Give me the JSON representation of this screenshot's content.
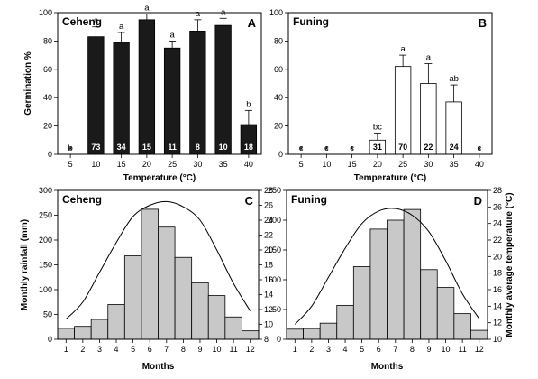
{
  "chart_data": [
    {
      "panel": "A",
      "type": "bar",
      "title": "Ceheng",
      "xlabel": "Temperature (°C)",
      "ylabel": "Germination %",
      "categories": [
        "5",
        "10",
        "15",
        "20",
        "25",
        "30",
        "35",
        "40"
      ],
      "values": [
        0,
        83,
        79,
        95,
        75,
        87,
        91,
        21
      ],
      "errors": [
        0,
        7,
        7,
        4,
        5,
        8,
        5,
        10
      ],
      "significance": [
        "b",
        "a",
        "a",
        "a",
        "a",
        "a",
        "a",
        "b"
      ],
      "counts": [
        "*",
        "73",
        "34",
        "15",
        "11",
        "8",
        "10",
        "18"
      ],
      "ylim": [
        0,
        100
      ],
      "yticks": [
        0,
        20,
        40,
        60,
        80,
        100
      ],
      "bar_color": "#1a1a1a"
    },
    {
      "panel": "B",
      "type": "bar",
      "title": "Funing",
      "xlabel": "Temperature (°C)",
      "ylabel": "",
      "categories": [
        "5",
        "10",
        "15",
        "20",
        "25",
        "30",
        "35",
        "40"
      ],
      "values": [
        0,
        0,
        0,
        10,
        62,
        50,
        37,
        0
      ],
      "errors": [
        0,
        0,
        0,
        5,
        8,
        14,
        12,
        0
      ],
      "significance": [
        "c",
        "c",
        "c",
        "bc",
        "a",
        "a",
        "ab",
        "c"
      ],
      "counts": [
        "*",
        "*",
        "*",
        "31",
        "70",
        "22",
        "24",
        "*"
      ],
      "ylim": [
        0,
        100
      ],
      "yticks": [
        0,
        20,
        40,
        60,
        80,
        100
      ],
      "bar_color": "#ffffff"
    },
    {
      "panel": "C",
      "type": "bar",
      "title": "Ceheng",
      "xlabel": "Months",
      "ylabel": "Monthly rainfall (mm)",
      "categories": [
        "1",
        "2",
        "3",
        "4",
        "5",
        "6",
        "7",
        "8",
        "9",
        "10",
        "11",
        "12"
      ],
      "values": [
        22,
        26,
        40,
        70,
        168,
        262,
        226,
        165,
        114,
        88,
        45,
        17
      ],
      "ylim": [
        0,
        300
      ],
      "yticks": [
        0,
        50,
        100,
        150,
        200,
        250,
        300
      ],
      "secondary": {
        "ylabel": "",
        "ylim": [
          8,
          28
        ],
        "yticks": [
          8,
          10,
          12,
          14,
          16,
          18,
          20,
          22,
          24,
          26,
          28
        ],
        "type": "line",
        "values": [
          10.7,
          13.0,
          17.0,
          21.0,
          24.5,
          26.0,
          26.5,
          25.8,
          24.0,
          20.0,
          15.5,
          11.8
        ]
      },
      "bar_color": "#c8c8c8"
    },
    {
      "panel": "D",
      "type": "bar",
      "title": "Funing",
      "xlabel": "Months",
      "ylabel": "",
      "categories": [
        "1",
        "2",
        "3",
        "4",
        "5",
        "6",
        "7",
        "8",
        "9",
        "10",
        "11",
        "12"
      ],
      "values": [
        17,
        18,
        27,
        57,
        122,
        185,
        200,
        218,
        117,
        87,
        43,
        15
      ],
      "ylim": [
        0,
        250
      ],
      "yticks": [
        0,
        50,
        100,
        150,
        200,
        250
      ],
      "secondary": {
        "ylabel": "Monthly average temperature (°C)",
        "ylim": [
          10,
          28
        ],
        "yticks": [
          10,
          12,
          14,
          16,
          18,
          20,
          22,
          24,
          26,
          28
        ],
        "type": "line",
        "values": [
          11.8,
          14.0,
          17.5,
          21.0,
          24.0,
          25.5,
          25.8,
          25.0,
          23.0,
          19.5,
          15.5,
          12.5
        ]
      },
      "bar_color": "#c8c8c8"
    }
  ]
}
